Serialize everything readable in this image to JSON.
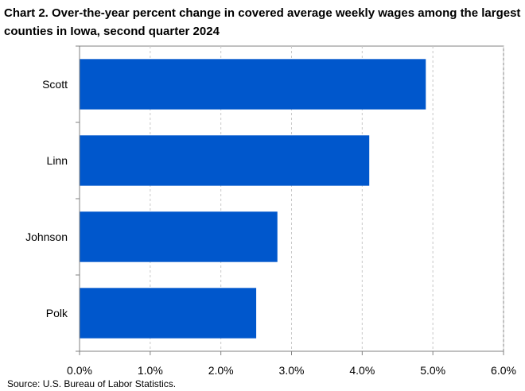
{
  "chart_data": {
    "type": "bar",
    "orientation": "horizontal",
    "title": "Chart 2. Over-the-year percent change in covered average weekly wages among the largest counties in Iowa, second quarter 2024",
    "categories": [
      "Scott",
      "Linn",
      "Johnson",
      "Polk"
    ],
    "values": [
      4.9,
      4.1,
      2.8,
      2.5
    ],
    "xlim": [
      0,
      6
    ],
    "x_ticks": [
      "0.0%",
      "1.0%",
      "2.0%",
      "3.0%",
      "4.0%",
      "5.0%",
      "6.0%"
    ],
    "xlabel": "",
    "ylabel": "",
    "grid": "vertical dashed",
    "legend": "none",
    "bar_color": "#0057CC",
    "gridline_color": "#C8C8C8",
    "source": "Source: U.S. Bureau of Labor Statistics."
  }
}
